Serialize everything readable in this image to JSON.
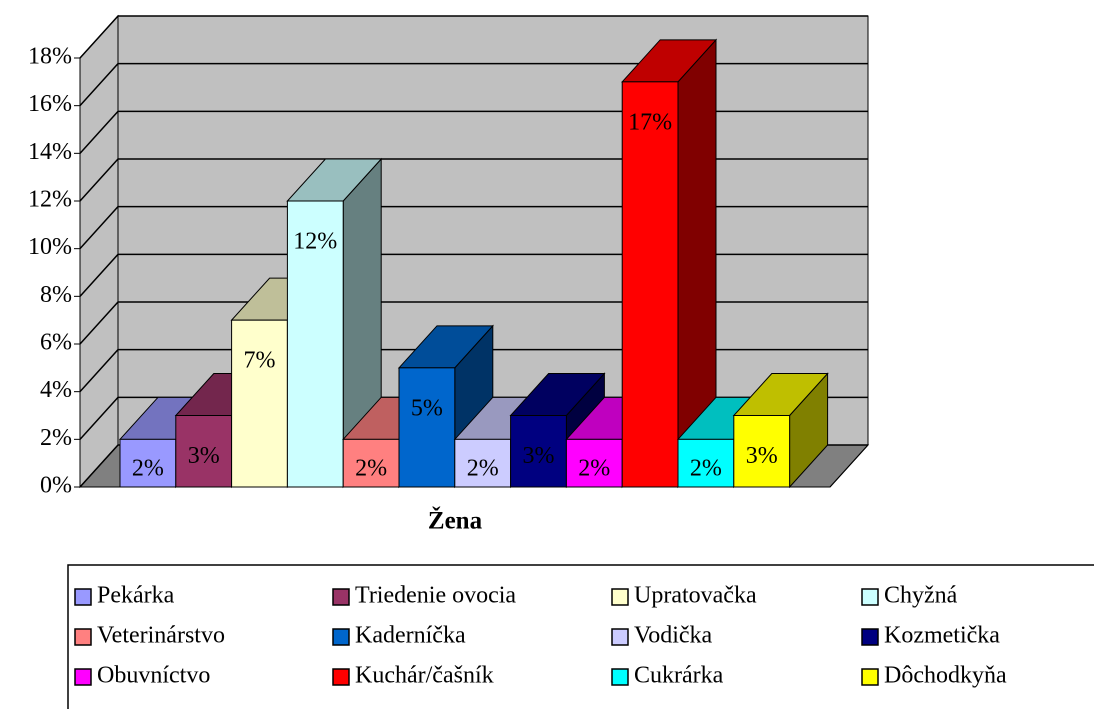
{
  "chart_data": {
    "type": "bar3d",
    "x_label": "Žena",
    "ylim": [
      0,
      18
    ],
    "yticks": [
      {
        "value": 0,
        "label": "0%"
      },
      {
        "value": 2,
        "label": "2%"
      },
      {
        "value": 4,
        "label": "4%"
      },
      {
        "value": 6,
        "label": "6%"
      },
      {
        "value": 8,
        "label": "8%"
      },
      {
        "value": 10,
        "label": "10%"
      },
      {
        "value": 12,
        "label": "12%"
      },
      {
        "value": 14,
        "label": "14%"
      },
      {
        "value": 16,
        "label": "16%"
      },
      {
        "value": 18,
        "label": "18%"
      }
    ],
    "grid": true,
    "legend": "bottom",
    "series": [
      {
        "name": "Pekárka",
        "color": "#9999ff",
        "values": [
          2
        ],
        "value_labels": [
          "2%"
        ]
      },
      {
        "name": "Triedenie ovocia",
        "color": "#993366",
        "values": [
          3
        ],
        "value_labels": [
          "3%"
        ]
      },
      {
        "name": "Upratovačka",
        "color": "#ffffcc",
        "values": [
          7
        ],
        "value_labels": [
          "7%"
        ]
      },
      {
        "name": "Chyžná",
        "color": "#ccffff",
        "values": [
          12
        ],
        "value_labels": [
          "12%"
        ]
      },
      {
        "name": "Veterinárstvo",
        "color": "#ff8080",
        "values": [
          2
        ],
        "value_labels": [
          "2%"
        ]
      },
      {
        "name": "Kaderníčka",
        "color": "#0066cc",
        "values": [
          5
        ],
        "value_labels": [
          "5%"
        ]
      },
      {
        "name": "Vodička",
        "color": "#ccccff",
        "values": [
          2
        ],
        "value_labels": [
          "2%"
        ]
      },
      {
        "name": "Kozmetička",
        "color": "#000080",
        "values": [
          3
        ],
        "value_labels": [
          "3%"
        ]
      },
      {
        "name": "Obuvníctvo",
        "color": "#ff00ff",
        "values": [
          2
        ],
        "value_labels": [
          "2%"
        ]
      },
      {
        "name": "Kuchár/čašník",
        "color": "#ff0000",
        "values": [
          17
        ],
        "value_labels": [
          "17%"
        ]
      },
      {
        "name": "Cukrárka",
        "color": "#00ffff",
        "values": [
          2
        ],
        "value_labels": [
          "2%"
        ]
      },
      {
        "name": "Dôchodkyňa",
        "color": "#ffff00",
        "values": [
          3
        ],
        "value_labels": [
          "3%"
        ]
      }
    ]
  }
}
